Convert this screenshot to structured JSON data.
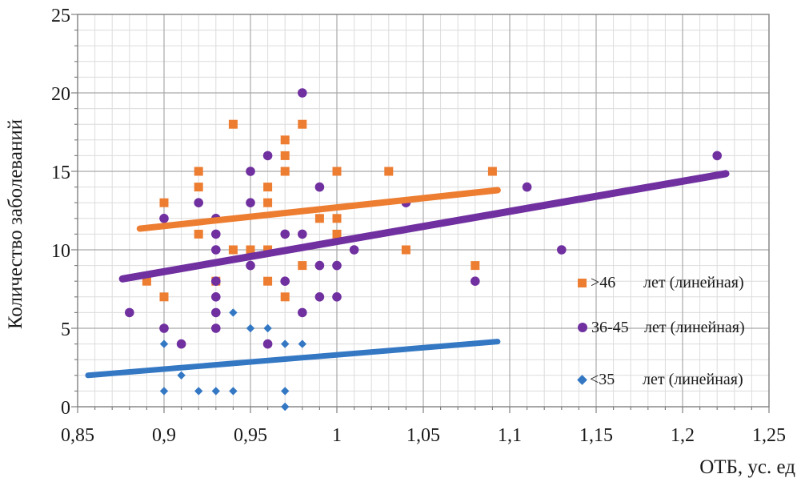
{
  "chart_data": {
    "type": "scatter",
    "title": "",
    "xlabel": "ОТБ, ус. ед",
    "ylabel": "Количество заболеваний",
    "xlim": [
      0.85,
      1.25
    ],
    "ylim": [
      0,
      25
    ],
    "x_ticks": [
      0.85,
      0.9,
      0.95,
      1.0,
      1.05,
      1.1,
      1.15,
      1.2,
      1.25
    ],
    "x_tick_labels": [
      "0,85",
      "0,9",
      "0,95",
      "1",
      "1,05",
      "1,1",
      "1,15",
      "1,2",
      "1,25"
    ],
    "y_ticks": [
      0,
      5,
      10,
      15,
      20,
      25
    ],
    "y_tick_labels": [
      "0",
      "5",
      "10",
      "15",
      "20",
      "25"
    ],
    "grid": {
      "x_minor_step": 0.01,
      "x_major_step": 0.05,
      "y_minor_step": 1,
      "y_major_step": 5,
      "visible": true
    },
    "legend_position": "right-inside",
    "series": [
      {
        "id": "over-46",
        "legend_value": ">46",
        "legend_text": "лет (линейная)",
        "marker": "square",
        "color": "#ED7D31",
        "trend_width": 8,
        "points": [
          [
            0.89,
            8
          ],
          [
            0.9,
            13
          ],
          [
            0.9,
            7
          ],
          [
            0.92,
            15
          ],
          [
            0.92,
            14
          ],
          [
            0.92,
            11
          ],
          [
            0.93,
            8
          ],
          [
            0.94,
            18
          ],
          [
            0.94,
            10
          ],
          [
            0.95,
            10
          ],
          [
            0.96,
            14
          ],
          [
            0.96,
            13
          ],
          [
            0.96,
            10
          ],
          [
            0.96,
            8
          ],
          [
            0.97,
            17
          ],
          [
            0.97,
            16
          ],
          [
            0.97,
            15
          ],
          [
            0.97,
            7
          ],
          [
            0.98,
            18
          ],
          [
            0.98,
            9
          ],
          [
            0.99,
            12
          ],
          [
            1.0,
            15
          ],
          [
            1.0,
            12
          ],
          [
            1.0,
            11
          ],
          [
            1.03,
            15
          ],
          [
            1.04,
            10
          ],
          [
            1.08,
            9
          ],
          [
            1.09,
            15
          ]
        ],
        "trendline": {
          "x1": 0.886,
          "y1": 11.35,
          "x2": 1.093,
          "y2": 13.8
        }
      },
      {
        "id": "36-45",
        "legend_value": "36-45",
        "legend_text": "лет (линейная)",
        "marker": "circle",
        "color": "#7030A0",
        "trend_width": 9,
        "points": [
          [
            0.88,
            6
          ],
          [
            0.9,
            12
          ],
          [
            0.9,
            5
          ],
          [
            0.91,
            4
          ],
          [
            0.92,
            13
          ],
          [
            0.93,
            12
          ],
          [
            0.93,
            11
          ],
          [
            0.93,
            10
          ],
          [
            0.93,
            8
          ],
          [
            0.93,
            7
          ],
          [
            0.93,
            6
          ],
          [
            0.93,
            5
          ],
          [
            0.95,
            15
          ],
          [
            0.95,
            13
          ],
          [
            0.95,
            9
          ],
          [
            0.96,
            16
          ],
          [
            0.96,
            4
          ],
          [
            0.97,
            11
          ],
          [
            0.97,
            8
          ],
          [
            0.98,
            20
          ],
          [
            0.98,
            11
          ],
          [
            0.98,
            6
          ],
          [
            0.99,
            14
          ],
          [
            0.99,
            9
          ],
          [
            0.99,
            7
          ],
          [
            1.0,
            9
          ],
          [
            1.0,
            7
          ],
          [
            1.01,
            10
          ],
          [
            1.04,
            13
          ],
          [
            1.08,
            8
          ],
          [
            1.11,
            14
          ],
          [
            1.13,
            10
          ],
          [
            1.22,
            16
          ]
        ],
        "trendline": {
          "x1": 0.876,
          "y1": 8.15,
          "x2": 1.225,
          "y2": 14.85
        }
      },
      {
        "id": "under-35",
        "legend_value": "<35",
        "legend_text": "лет (линейная)",
        "marker": "diamond",
        "color": "#3478C4",
        "trend_width": 7,
        "points": [
          [
            0.9,
            4
          ],
          [
            0.9,
            1
          ],
          [
            0.91,
            2
          ],
          [
            0.92,
            1
          ],
          [
            0.93,
            1
          ],
          [
            0.94,
            6
          ],
          [
            0.94,
            1
          ],
          [
            0.95,
            5
          ],
          [
            0.96,
            5
          ],
          [
            0.97,
            4
          ],
          [
            0.97,
            1
          ],
          [
            0.97,
            0
          ],
          [
            0.98,
            4
          ]
        ],
        "trendline": {
          "x1": 0.856,
          "y1": 2.0,
          "x2": 1.093,
          "y2": 4.15
        }
      }
    ],
    "colors": {
      "grid_minor": "#DCDCDC",
      "grid_major": "#A9A9A9",
      "frame": "#808080",
      "text": "#1a1a1a"
    }
  }
}
